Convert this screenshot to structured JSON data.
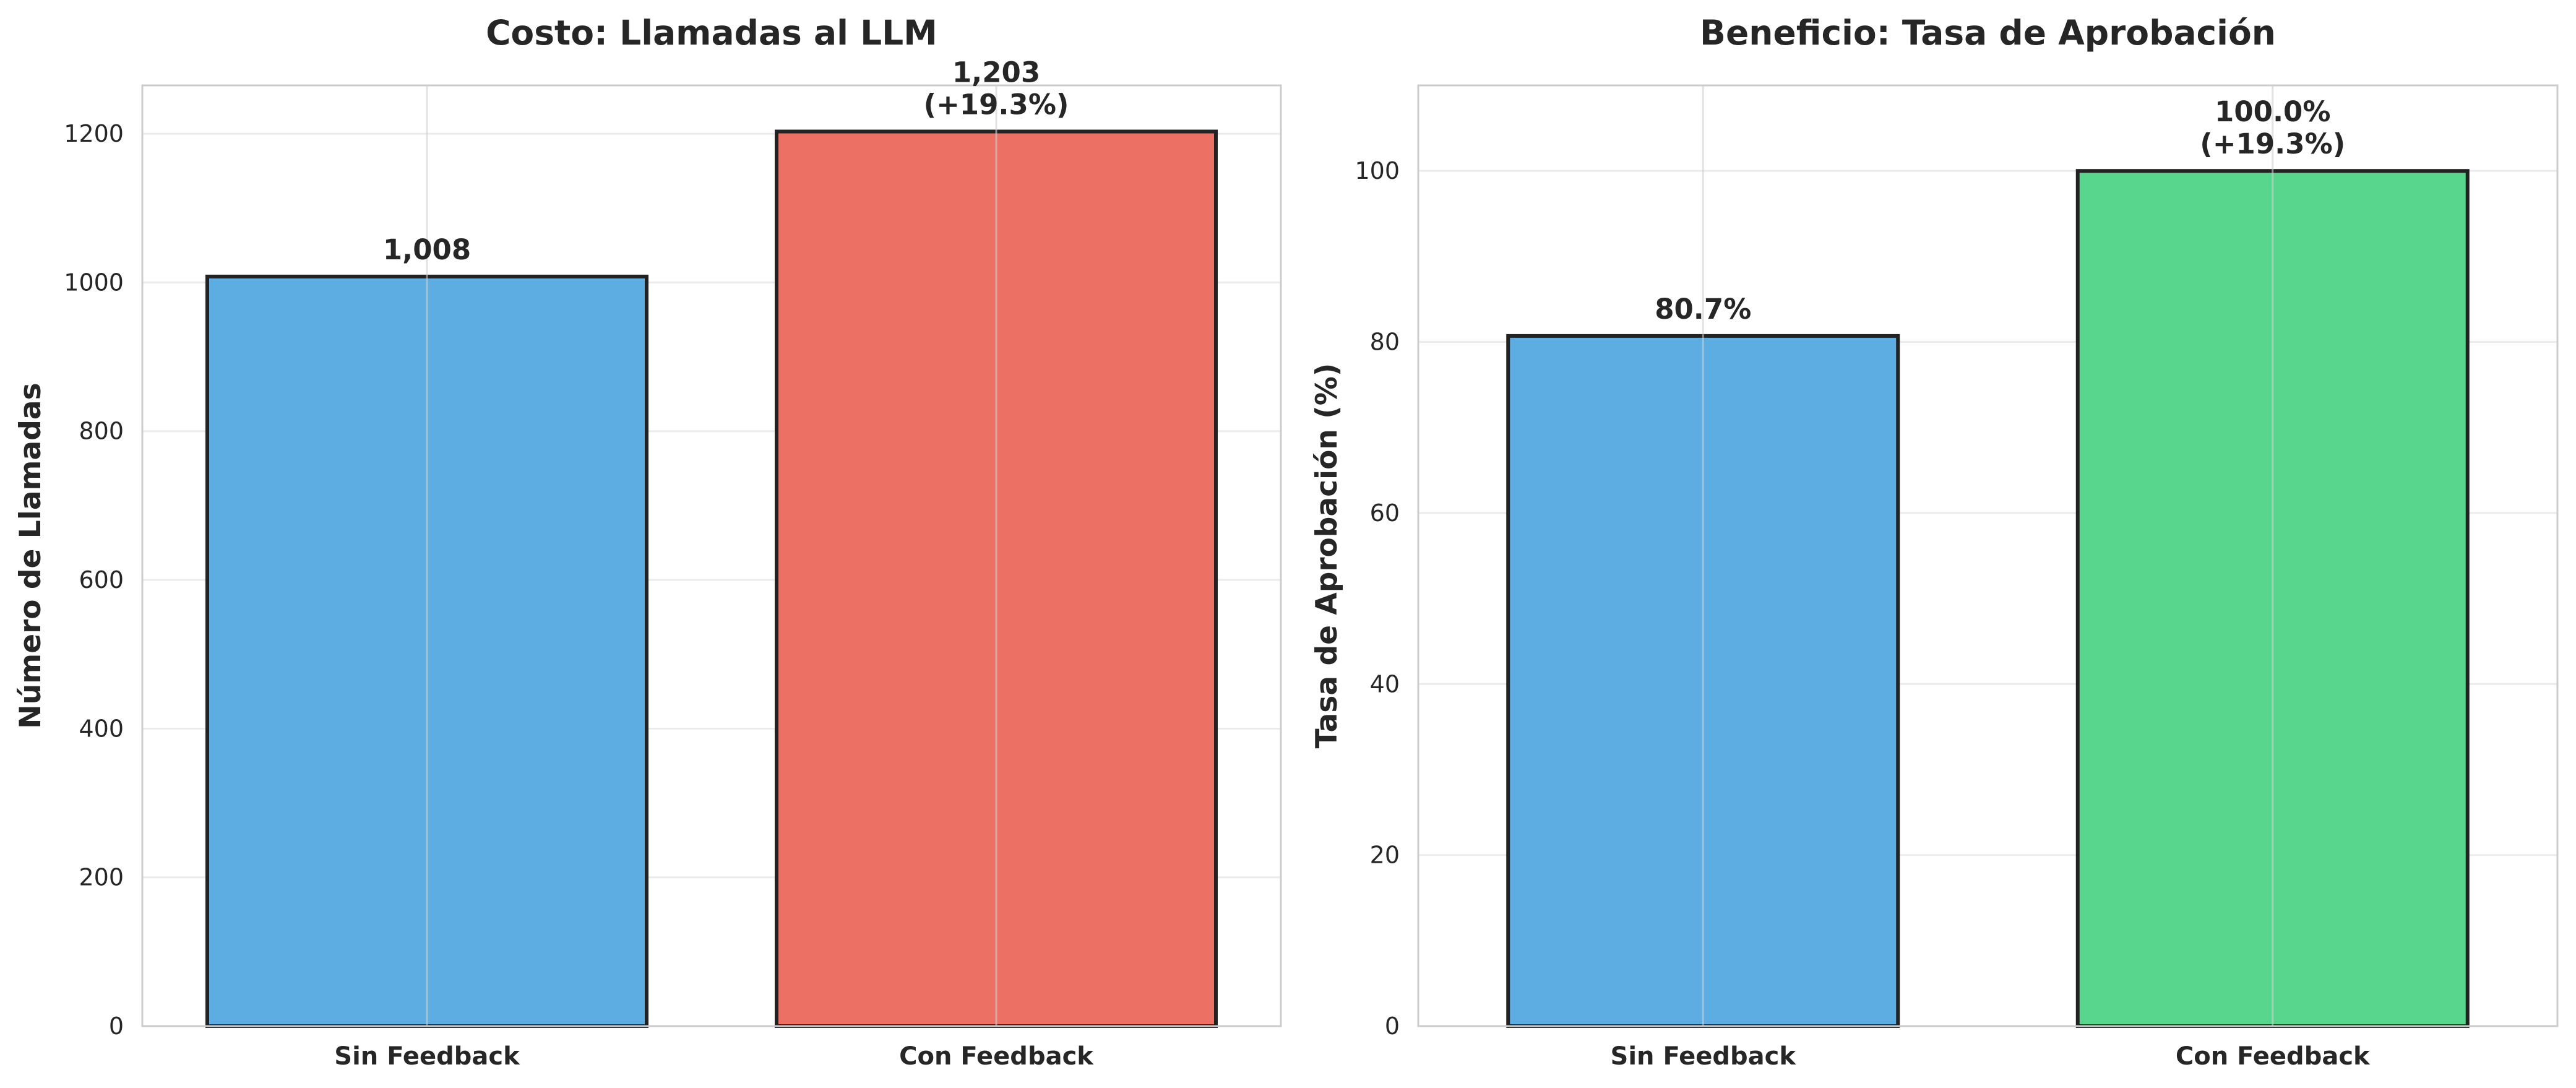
{
  "chart_data": [
    {
      "type": "bar",
      "title": "Costo: Llamadas al LLM",
      "xlabel": "",
      "ylabel": "Número de Llamadas",
      "categories": [
        "Sin Feedback",
        "Con Feedback"
      ],
      "values": [
        1008,
        1203
      ],
      "value_labels": [
        [
          "1,008"
        ],
        [
          "1,203",
          "(+19.3%)"
        ]
      ],
      "colors": [
        "#5dade2",
        "#ec7063"
      ],
      "ylim": [
        0,
        1265
      ],
      "yticks": [
        0,
        200,
        400,
        600,
        800,
        1000,
        1200
      ],
      "ytick_labels": [
        "0",
        "200",
        "400",
        "600",
        "800",
        "1000",
        "1200"
      ],
      "grid": true
    },
    {
      "type": "bar",
      "title": "Beneficio: Tasa de Aprobación",
      "xlabel": "",
      "ylabel": "Tasa de Aprobación (%)",
      "categories": [
        "Sin Feedback",
        "Con Feedback"
      ],
      "values": [
        80.7,
        100.0
      ],
      "value_labels": [
        [
          "80.7%"
        ],
        [
          "100.0%",
          "(+19.3%)"
        ]
      ],
      "colors": [
        "#5dade2",
        "#58d68d"
      ],
      "ylim": [
        0,
        110
      ],
      "yticks": [
        0,
        20,
        40,
        60,
        80,
        100
      ],
      "ytick_labels": [
        "0",
        "20",
        "40",
        "60",
        "80",
        "100"
      ],
      "grid": true
    }
  ]
}
